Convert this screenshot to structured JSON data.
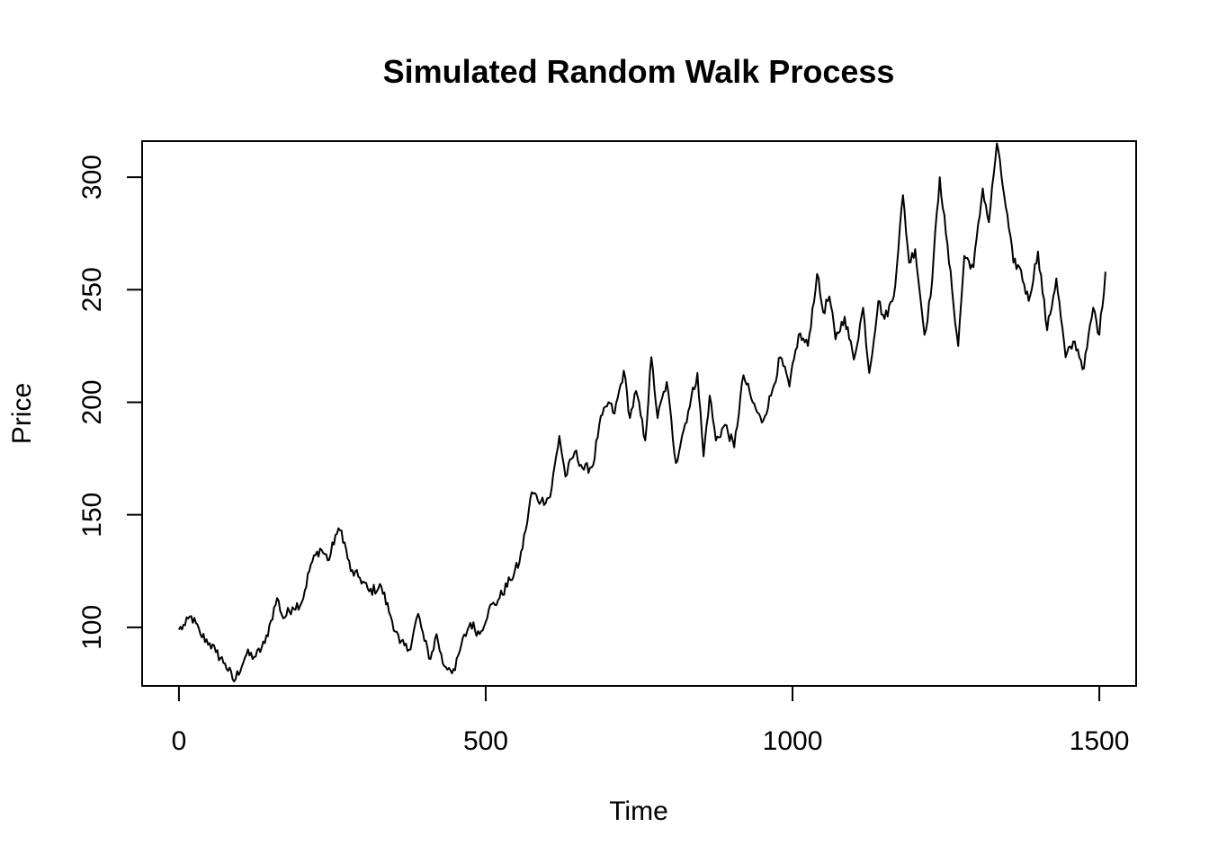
{
  "chart_data": {
    "type": "line",
    "title": "Simulated Random Walk Process",
    "xlabel": "Time",
    "ylabel": "Price",
    "xlim": [
      -60,
      1560
    ],
    "ylim": [
      74,
      316
    ],
    "x_ticks": [
      0,
      500,
      1000,
      1500
    ],
    "y_ticks": [
      100,
      150,
      200,
      250,
      300
    ],
    "grid": false,
    "series": [
      {
        "color": "#000000",
        "x": [
          0,
          10,
          20,
          35,
          50,
          60,
          75,
          90,
          110,
          125,
          140,
          150,
          160,
          170,
          185,
          200,
          215,
          230,
          245,
          255,
          265,
          280,
          295,
          310,
          330,
          345,
          360,
          375,
          390,
          400,
          410,
          420,
          430,
          440,
          450,
          460,
          475,
          490,
          505,
          520,
          540,
          555,
          565,
          575,
          590,
          605,
          620,
          630,
          645,
          660,
          675,
          685,
          700,
          710,
          725,
          735,
          745,
          760,
          770,
          780,
          795,
          810,
          820,
          830,
          845,
          855,
          865,
          875,
          890,
          905,
          920,
          935,
          950,
          965,
          980,
          995,
          1010,
          1025,
          1040,
          1050,
          1060,
          1070,
          1085,
          1100,
          1115,
          1125,
          1140,
          1150,
          1165,
          1180,
          1190,
          1200,
          1215,
          1225,
          1240,
          1250,
          1260,
          1270,
          1280,
          1295,
          1310,
          1320,
          1333,
          1345,
          1360,
          1370,
          1385,
          1400,
          1415,
          1430,
          1445,
          1460,
          1475,
          1490,
          1500,
          1510
        ],
        "y": [
          99,
          101,
          105,
          97,
          93,
          89,
          84,
          76,
          88,
          87,
          93,
          103,
          113,
          104,
          109,
          111,
          128,
          135,
          130,
          141,
          143,
          125,
          122,
          116,
          118,
          105,
          93,
          90,
          106,
          94,
          86,
          97,
          84,
          82,
          81,
          92,
          102,
          97,
          108,
          112,
          121,
          129,
          143,
          160,
          156,
          158,
          185,
          167,
          178,
          170,
          172,
          190,
          200,
          195,
          214,
          193,
          205,
          183,
          220,
          193,
          209,
          173,
          185,
          196,
          213,
          176,
          203,
          183,
          190,
          180,
          212,
          200,
          191,
          203,
          220,
          207,
          230,
          225,
          257,
          240,
          247,
          228,
          238,
          219,
          242,
          213,
          245,
          237,
          247,
          292,
          262,
          268,
          230,
          247,
          300,
          275,
          250,
          225,
          265,
          260,
          295,
          280,
          315,
          292,
          262,
          260,
          245,
          267,
          232,
          255,
          220,
          227,
          215,
          242,
          230,
          258
        ]
      }
    ]
  }
}
